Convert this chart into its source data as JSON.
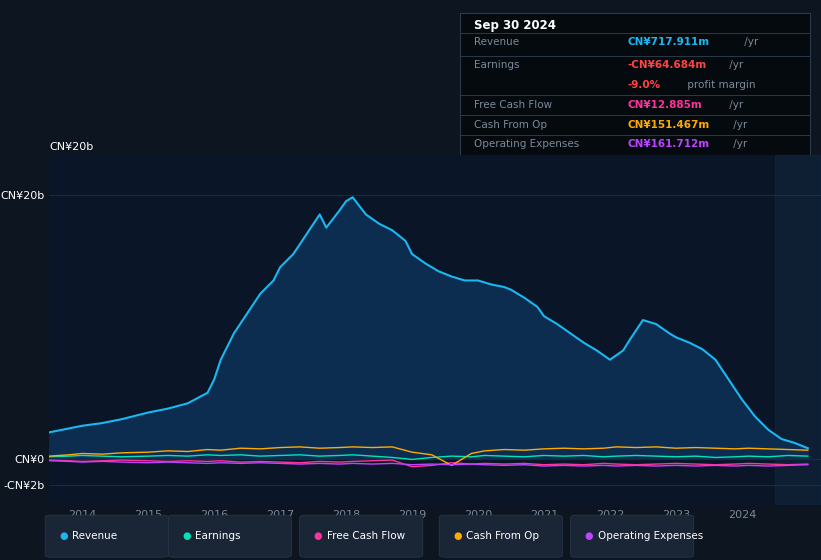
{
  "bg_color": "#0d1520",
  "chart_bg": "#0a1628",
  "grid_color": "#1a2a3a",
  "axis_label_color": "#7a8a9a",
  "y_tick_labels": [
    "CN¥20b",
    "CN¥0",
    "-CN¥2b"
  ],
  "y_ticks": [
    20,
    0,
    -2
  ],
  "ylim": [
    -3.5,
    23
  ],
  "xlim": [
    2013.5,
    2025.2
  ],
  "x_tick_labels": [
    "2014",
    "2015",
    "2016",
    "2017",
    "2018",
    "2019",
    "2020",
    "2021",
    "2022",
    "2023",
    "2024"
  ],
  "x_ticks": [
    2014,
    2015,
    2016,
    2017,
    2018,
    2019,
    2020,
    2021,
    2022,
    2023,
    2024
  ],
  "revenue_color": "#1ab8f0",
  "revenue_fill": "#0d2d50",
  "earnings_color": "#00e5b8",
  "fcf_color": "#ff3399",
  "cashfromop_color": "#ffaa00",
  "opex_color": "#bb44ff",
  "info_box": {
    "title": "Sep 30 2024",
    "revenue_label": "Revenue",
    "revenue_value": "CN¥717.911m",
    "revenue_suffix": " /yr",
    "revenue_color": "#1ab8f0",
    "earnings_label": "Earnings",
    "earnings_value": "-CN¥64.684m",
    "earnings_suffix": " /yr",
    "earnings_color": "#ff4444",
    "margin_value": "-9.0%",
    "margin_suffix": " profit margin",
    "margin_color": "#ff4444",
    "fcf_label": "Free Cash Flow",
    "fcf_value": "CN¥12.885m",
    "fcf_suffix": " /yr",
    "fcf_color": "#ff3399",
    "cashfromop_label": "Cash From Op",
    "cashfromop_value": "CN¥151.467m",
    "cashfromop_suffix": " /yr",
    "cashfromop_color": "#ffaa00",
    "opex_label": "Operating Expenses",
    "opex_value": "CN¥161.712m",
    "opex_suffix": " /yr",
    "opex_color": "#bb44ff"
  },
  "legend": [
    {
      "label": "Revenue",
      "color": "#1ab8f0"
    },
    {
      "label": "Earnings",
      "color": "#00e5b8"
    },
    {
      "label": "Free Cash Flow",
      "color": "#ff3399"
    },
    {
      "label": "Cash From Op",
      "color": "#ffaa00"
    },
    {
      "label": "Operating Expenses",
      "color": "#bb44ff"
    }
  ],
  "revenue_x": [
    2013.5,
    2013.7,
    2014.0,
    2014.3,
    2014.6,
    2015.0,
    2015.3,
    2015.6,
    2015.9,
    2016.0,
    2016.1,
    2016.3,
    2016.5,
    2016.7,
    2016.9,
    2017.0,
    2017.2,
    2017.4,
    2017.6,
    2017.7,
    2017.9,
    2018.0,
    2018.1,
    2018.3,
    2018.5,
    2018.7,
    2018.9,
    2019.0,
    2019.2,
    2019.4,
    2019.6,
    2019.8,
    2020.0,
    2020.2,
    2020.4,
    2020.5,
    2020.6,
    2020.7,
    2020.9,
    2021.0,
    2021.2,
    2021.4,
    2021.6,
    2021.8,
    2022.0,
    2022.2,
    2022.3,
    2022.5,
    2022.7,
    2022.9,
    2023.0,
    2023.2,
    2023.4,
    2023.6,
    2023.8,
    2024.0,
    2024.2,
    2024.4,
    2024.6,
    2024.8,
    2025.0
  ],
  "revenue_y": [
    2.0,
    2.2,
    2.5,
    2.7,
    3.0,
    3.5,
    3.8,
    4.2,
    5.0,
    6.0,
    7.5,
    9.5,
    11.0,
    12.5,
    13.5,
    14.5,
    15.5,
    17.0,
    18.5,
    17.5,
    18.8,
    19.5,
    19.8,
    18.5,
    17.8,
    17.3,
    16.5,
    15.5,
    14.8,
    14.2,
    13.8,
    13.5,
    13.5,
    13.2,
    13.0,
    12.8,
    12.5,
    12.2,
    11.5,
    10.8,
    10.2,
    9.5,
    8.8,
    8.2,
    7.5,
    8.2,
    9.0,
    10.5,
    10.2,
    9.5,
    9.2,
    8.8,
    8.3,
    7.5,
    6.0,
    4.5,
    3.2,
    2.2,
    1.5,
    1.2,
    0.8
  ],
  "small_lines_x": [
    2013.5,
    2013.8,
    2014.0,
    2014.3,
    2014.6,
    2015.0,
    2015.3,
    2015.6,
    2015.9,
    2016.1,
    2016.4,
    2016.7,
    2017.0,
    2017.3,
    2017.6,
    2017.9,
    2018.1,
    2018.4,
    2018.7,
    2019.0,
    2019.3,
    2019.6,
    2019.9,
    2020.1,
    2020.4,
    2020.7,
    2021.0,
    2021.3,
    2021.6,
    2021.9,
    2022.1,
    2022.4,
    2022.7,
    2023.0,
    2023.3,
    2023.6,
    2023.9,
    2024.1,
    2024.4,
    2024.7,
    2025.0
  ],
  "earnings_y": [
    0.15,
    0.2,
    0.25,
    0.2,
    0.15,
    0.2,
    0.25,
    0.2,
    0.3,
    0.25,
    0.3,
    0.2,
    0.25,
    0.3,
    0.2,
    0.25,
    0.3,
    0.2,
    0.1,
    -0.05,
    0.1,
    0.2,
    0.15,
    0.25,
    0.2,
    0.15,
    0.25,
    0.2,
    0.25,
    0.15,
    0.2,
    0.25,
    0.2,
    0.15,
    0.2,
    0.1,
    0.15,
    0.2,
    0.15,
    0.25,
    0.2
  ],
  "fcf_y": [
    -0.1,
    -0.15,
    -0.2,
    -0.15,
    -0.1,
    -0.15,
    -0.2,
    -0.15,
    -0.2,
    -0.15,
    -0.25,
    -0.2,
    -0.25,
    -0.3,
    -0.2,
    -0.25,
    -0.2,
    -0.15,
    -0.1,
    -0.6,
    -0.5,
    -0.3,
    -0.4,
    -0.35,
    -0.4,
    -0.35,
    -0.45,
    -0.4,
    -0.45,
    -0.35,
    -0.4,
    -0.45,
    -0.4,
    -0.35,
    -0.4,
    -0.45,
    -0.4,
    -0.35,
    -0.4,
    -0.45,
    -0.4
  ],
  "cashop_y": [
    0.2,
    0.3,
    0.4,
    0.35,
    0.45,
    0.5,
    0.6,
    0.55,
    0.7,
    0.65,
    0.8,
    0.75,
    0.85,
    0.9,
    0.8,
    0.85,
    0.9,
    0.85,
    0.9,
    0.5,
    0.3,
    -0.5,
    0.4,
    0.6,
    0.7,
    0.65,
    0.75,
    0.8,
    0.75,
    0.8,
    0.9,
    0.85,
    0.9,
    0.8,
    0.85,
    0.8,
    0.75,
    0.8,
    0.75,
    0.7,
    0.65
  ],
  "opex_y": [
    -0.15,
    -0.2,
    -0.25,
    -0.2,
    -0.25,
    -0.3,
    -0.25,
    -0.3,
    -0.35,
    -0.3,
    -0.35,
    -0.3,
    -0.35,
    -0.4,
    -0.35,
    -0.4,
    -0.35,
    -0.4,
    -0.35,
    -0.45,
    -0.4,
    -0.45,
    -0.4,
    -0.45,
    -0.5,
    -0.45,
    -0.55,
    -0.5,
    -0.55,
    -0.5,
    -0.55,
    -0.5,
    -0.55,
    -0.5,
    -0.55,
    -0.5,
    -0.55,
    -0.5,
    -0.55,
    -0.5,
    -0.45
  ]
}
